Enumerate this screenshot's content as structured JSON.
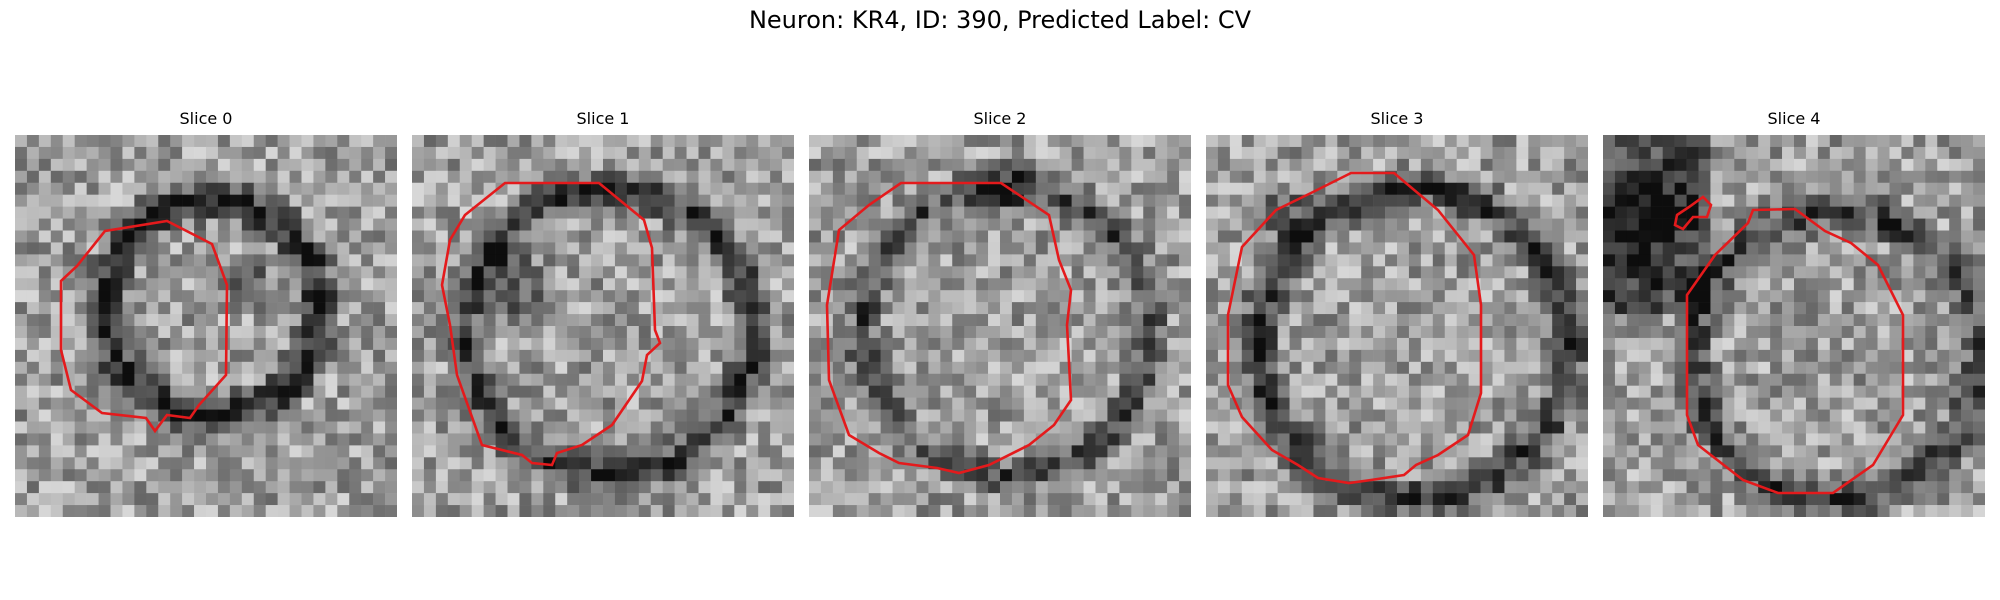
{
  "figure": {
    "suptitle": "Neuron: KR4, ID: 390, Predicted Label: CV"
  },
  "slices": [
    {
      "title": "Slice 0"
    },
    {
      "title": "Slice 1"
    },
    {
      "title": "Slice 2"
    },
    {
      "title": "Slice 3"
    },
    {
      "title": "Slice 4"
    }
  ],
  "colors": {
    "contour": "#e41a1c",
    "background": "#ffffff"
  }
}
